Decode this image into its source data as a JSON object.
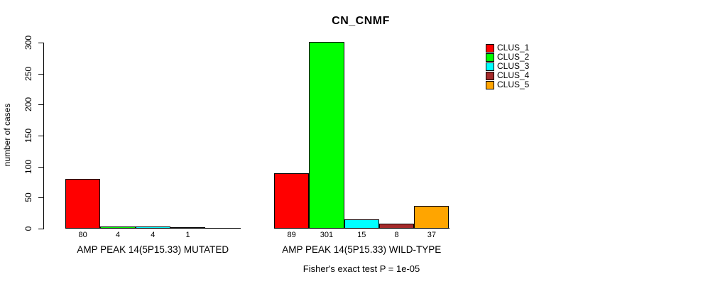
{
  "chart_data": {
    "type": "bar",
    "title": "CN_CNMF",
    "ylabel": "number of cases",
    "xlabel": "",
    "ylim": [
      0,
      300
    ],
    "yticks": [
      0,
      50,
      100,
      150,
      200,
      250,
      300
    ],
    "grid": false,
    "legend_position": "right",
    "categories": [
      "AMP PEAK 14(5P15.33) MUTATED",
      "AMP PEAK 14(5P15.33) WILD-TYPE"
    ],
    "series": [
      {
        "name": "CLUS_1",
        "color": "#FF0000",
        "values": [
          80,
          89
        ]
      },
      {
        "name": "CLUS_2",
        "color": "#00FF00",
        "values": [
          4,
          301
        ]
      },
      {
        "name": "CLUS_3",
        "color": "#00FFFF",
        "values": [
          4,
          15
        ]
      },
      {
        "name": "CLUS_4",
        "color": "#A52A2A",
        "values": [
          1,
          8
        ]
      },
      {
        "name": "CLUS_5",
        "color": "#FFA500",
        "values": [
          0,
          37
        ]
      }
    ],
    "bar_value_labels": [
      [
        "80",
        "4",
        "4",
        "1",
        ""
      ],
      [
        "89",
        "301",
        "15",
        "8",
        "37"
      ]
    ],
    "annotation": "Fisher's exact test P = 1e-05"
  },
  "legend": {
    "items": [
      {
        "label": "CLUS_1",
        "color": "#FF0000"
      },
      {
        "label": "CLUS_2",
        "color": "#00FF00"
      },
      {
        "label": "CLUS_3",
        "color": "#00FFFF"
      },
      {
        "label": "CLUS_4",
        "color": "#A52A2A"
      },
      {
        "label": "CLUS_5",
        "color": "#FFA500"
      }
    ]
  },
  "colors": {
    "background": "#FFFFFF",
    "axis": "#000000",
    "text": "#000000"
  }
}
